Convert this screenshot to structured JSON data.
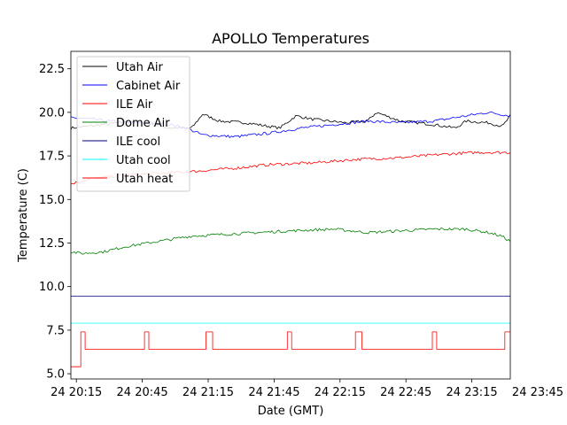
{
  "chart_data": {
    "type": "line",
    "title": "APOLLO Temperatures",
    "xlabel": "Date (GMT)",
    "ylabel": "Temperature (C)",
    "xlim_hours": [
      20.0,
      24.0
    ],
    "ylim": [
      4.7,
      23.5
    ],
    "yticks": [
      5.0,
      7.5,
      10.0,
      12.5,
      15.0,
      17.5,
      20.0,
      22.5
    ],
    "ytick_labels": [
      "5.0",
      "7.5",
      "10.0",
      "12.5",
      "15.0",
      "17.5",
      "20.0",
      "22.5"
    ],
    "xticks": [
      {
        "t": 20.05,
        "label": "24 20:15"
      },
      {
        "t": 20.65,
        "label": "24 20:45"
      },
      {
        "t": 21.25,
        "label": "24 21:15"
      },
      {
        "t": 21.85,
        "label": "24 21:45"
      },
      {
        "t": 22.45,
        "label": "24 22:15"
      },
      {
        "t": 23.05,
        "label": "24 22:45"
      },
      {
        "t": 23.65,
        "label": "24 23:15"
      },
      {
        "t": 24.25,
        "label": "24 23:45"
      }
    ],
    "grid": false,
    "legend_position": "top-left",
    "series": [
      {
        "name": "Utah Air",
        "color": "#000000",
        "style": "noisy",
        "points": [
          [
            20.0,
            19.1
          ],
          [
            20.3,
            19.3
          ],
          [
            20.6,
            19.5
          ],
          [
            20.9,
            19.1
          ],
          [
            21.1,
            19.1
          ],
          [
            21.2,
            19.9
          ],
          [
            21.35,
            19.5
          ],
          [
            21.6,
            19.4
          ],
          [
            21.9,
            19.1
          ],
          [
            22.05,
            19.8
          ],
          [
            22.2,
            19.6
          ],
          [
            22.5,
            19.4
          ],
          [
            22.7,
            19.5
          ],
          [
            22.78,
            20.0
          ],
          [
            23.0,
            19.5
          ],
          [
            23.3,
            19.3
          ],
          [
            23.5,
            19.1
          ],
          [
            23.6,
            19.5
          ],
          [
            23.8,
            19.4
          ],
          [
            23.93,
            19.2
          ],
          [
            24.0,
            19.8
          ]
        ]
      },
      {
        "name": "Cabinet Air",
        "color": "#0000ff",
        "style": "noisy",
        "points": [
          [
            20.0,
            19.7
          ],
          [
            20.2,
            19.6
          ],
          [
            20.5,
            19.4
          ],
          [
            20.7,
            19.4
          ],
          [
            20.9,
            19.3
          ],
          [
            21.05,
            19.1
          ],
          [
            21.2,
            18.7
          ],
          [
            21.5,
            18.6
          ],
          [
            21.8,
            18.8
          ],
          [
            22.1,
            19.1
          ],
          [
            22.4,
            19.3
          ],
          [
            22.7,
            19.5
          ],
          [
            23.0,
            19.4
          ],
          [
            23.3,
            19.5
          ],
          [
            23.6,
            19.8
          ],
          [
            23.8,
            20.0
          ],
          [
            24.0,
            19.8
          ]
        ]
      },
      {
        "name": "ILE Air",
        "color": "#ff0000",
        "style": "noisy",
        "points": [
          [
            20.0,
            15.9
          ],
          [
            20.2,
            16.2
          ],
          [
            20.5,
            16.4
          ],
          [
            20.8,
            16.5
          ],
          [
            21.1,
            16.6
          ],
          [
            21.5,
            16.8
          ],
          [
            21.8,
            17.0
          ],
          [
            22.2,
            17.1
          ],
          [
            22.6,
            17.3
          ],
          [
            23.0,
            17.4
          ],
          [
            23.4,
            17.6
          ],
          [
            23.7,
            17.7
          ],
          [
            24.0,
            17.7
          ]
        ]
      },
      {
        "name": "Dome Air",
        "color": "#008000",
        "style": "noisy",
        "points": [
          [
            20.0,
            12.0
          ],
          [
            20.1,
            11.9
          ],
          [
            20.3,
            12.0
          ],
          [
            20.5,
            12.3
          ],
          [
            20.8,
            12.6
          ],
          [
            21.1,
            12.9
          ],
          [
            21.4,
            13.0
          ],
          [
            21.7,
            13.1
          ],
          [
            22.0,
            13.2
          ],
          [
            22.4,
            13.3
          ],
          [
            22.7,
            13.1
          ],
          [
            23.0,
            13.2
          ],
          [
            23.3,
            13.3
          ],
          [
            23.6,
            13.3
          ],
          [
            23.8,
            13.1
          ],
          [
            23.92,
            12.9
          ],
          [
            24.0,
            12.6
          ]
        ]
      },
      {
        "name": "ILE cool",
        "color": "#000080",
        "style": "flat",
        "points": [
          [
            20.0,
            9.45
          ],
          [
            24.0,
            9.45
          ]
        ]
      },
      {
        "name": "Utah cool",
        "color": "#00ffff",
        "style": "flat",
        "points": [
          [
            20.0,
            7.9
          ],
          [
            24.0,
            7.9
          ]
        ]
      },
      {
        "name": "Utah heat",
        "color": "#ff0000",
        "style": "step",
        "points": [
          [
            20.0,
            5.4
          ],
          [
            20.09,
            5.4
          ],
          [
            20.09,
            7.4
          ],
          [
            20.13,
            7.4
          ],
          [
            20.13,
            6.4
          ],
          [
            20.67,
            6.4
          ],
          [
            20.67,
            7.4
          ],
          [
            20.71,
            7.4
          ],
          [
            20.71,
            6.4
          ],
          [
            21.23,
            6.4
          ],
          [
            21.23,
            7.4
          ],
          [
            21.29,
            7.4
          ],
          [
            21.29,
            6.4
          ],
          [
            21.97,
            6.4
          ],
          [
            21.97,
            7.4
          ],
          [
            22.01,
            7.4
          ],
          [
            22.01,
            6.4
          ],
          [
            22.59,
            6.4
          ],
          [
            22.59,
            7.4
          ],
          [
            22.65,
            7.4
          ],
          [
            22.65,
            6.4
          ],
          [
            23.29,
            6.4
          ],
          [
            23.29,
            7.4
          ],
          [
            23.33,
            7.4
          ],
          [
            23.33,
            6.4
          ],
          [
            23.95,
            6.4
          ],
          [
            23.95,
            7.4
          ],
          [
            24.0,
            7.4
          ]
        ]
      }
    ]
  }
}
